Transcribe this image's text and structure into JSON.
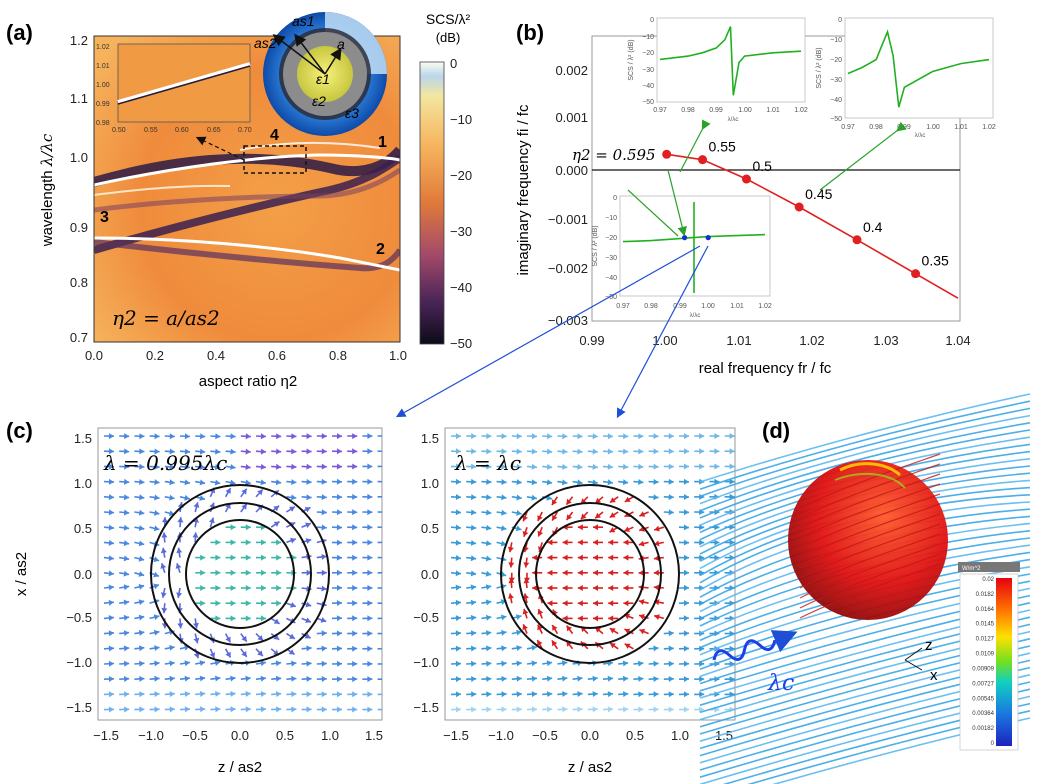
{
  "panels": {
    "a": {
      "label": "(a)",
      "ylabel_prefix": "wavelength",
      "ylabel_math": "λ/λc",
      "xlabel": "aspect ratio η2",
      "yticks": [
        "0.7",
        "0.8",
        "0.9",
        "1.0",
        "1.1",
        "1.2"
      ],
      "xticks": [
        "0.0",
        "0.2",
        "0.4",
        "0.6",
        "0.8",
        "1.0"
      ],
      "equation": "η2 = a/as2",
      "mode_labels": [
        "1",
        "2",
        "3",
        "4"
      ],
      "inset": {
        "xticks": [
          "0.50",
          "0.55",
          "0.60",
          "0.65",
          "0.70"
        ],
        "yticks": [
          "1.02",
          "1.01",
          "1.00",
          "0.99",
          "0.98"
        ]
      },
      "sphere_labels": [
        "as2",
        "as1",
        "a",
        "ε1",
        "ε2",
        "ε3"
      ],
      "colorbar": {
        "title": "SCS/λ²",
        "unit": "(dB)",
        "ticks": [
          "0",
          "−10",
          "−20",
          "−30",
          "−40",
          "−50"
        ]
      }
    },
    "b": {
      "label": "(b)",
      "ylabel": "imaginary frequency fi / fc",
      "xlabel": "real frequency fr / fc",
      "yticks": [
        "0.002",
        "0.001",
        "0.000",
        "−0.001",
        "−0.002",
        "−0.003"
      ],
      "xticks": [
        "0.99",
        "1.00",
        "1.01",
        "1.02",
        "1.03",
        "1.04"
      ],
      "eta_label": "η2 = 0.595",
      "insets": [
        {
          "ylabel": "SCS / λ² (dB)",
          "xlabel": "λ/λc",
          "yticks": [
            "0",
            "−10",
            "−20",
            "−30",
            "−40",
            "−50"
          ],
          "xticks": [
            "0.97",
            "0.98",
            "0.99",
            "1.00",
            "1.01",
            "1.02"
          ]
        },
        {
          "ylabel": "SCS / λ² (dB)",
          "xlabel": "λ/λc",
          "yticks": [
            "0",
            "−10",
            "−20",
            "−30",
            "−40",
            "−50"
          ],
          "xticks": [
            "0.97",
            "0.98",
            "0.99",
            "1.00",
            "1.01",
            "1.02"
          ]
        },
        {
          "ylabel": "SCS / λ² (dB)",
          "xlabel": "λ/λc",
          "yticks": [
            "0",
            "−10",
            "−20",
            "−30",
            "−40",
            "−50"
          ],
          "xticks": [
            "0.97",
            "0.98",
            "0.99",
            "1.00",
            "1.01",
            "1.02"
          ]
        }
      ]
    },
    "c": {
      "label": "(c)",
      "ylabel": "x / as2",
      "xlabel": "z / as2",
      "ticks": [
        "−1.5",
        "−1.0",
        "−0.5",
        "0.0",
        "0.5",
        "1.0",
        "1.5"
      ],
      "left_title": "λ = 0.995λc",
      "right_title": "λ = λc"
    },
    "d": {
      "label": "(d)",
      "colorbar_title": "W/m^2",
      "colorbar_ticks": [
        "0.02",
        "0.0182",
        "0.0164",
        "0.0145",
        "0.0127",
        "0.0109",
        "0.00909",
        "0.00727",
        "0.00545",
        "0.00364",
        "0.00182",
        "0"
      ],
      "axes": [
        "z",
        "x"
      ],
      "wave_label": "λc"
    }
  },
  "chart_data": [
    {
      "type": "scatter",
      "title": "",
      "xlabel": "real frequency fr / fc",
      "ylabel": "imaginary frequency fi / fc",
      "xlim": [
        0.99,
        1.04
      ],
      "ylim": [
        -0.0031,
        0.0022
      ],
      "points": [
        {
          "eta": "0.595",
          "x": 1.0002,
          "y": 0.0
        },
        {
          "eta": "0.55",
          "x": 1.0051,
          "y": -0.0001
        },
        {
          "eta": "0.5",
          "x": 1.0111,
          "y": -0.00046
        },
        {
          "eta": "0.45",
          "x": 1.0183,
          "y": -0.00098
        },
        {
          "eta": "0.4",
          "x": 1.0262,
          "y": -0.00159
        },
        {
          "eta": "0.35",
          "x": 1.0342,
          "y": -0.00222
        }
      ],
      "curve_color": "#e02020"
    },
    {
      "type": "line",
      "title": "",
      "xlabel": "λ/λc",
      "ylabel": "SCS / λ² (dB)",
      "xlim": [
        0.97,
        1.02
      ],
      "ylim": [
        -50,
        0
      ],
      "series": [
        {
          "x": [
            0.97,
            0.98,
            0.985,
            0.99,
            0.993,
            0.995,
            0.996,
            0.998,
            1.0,
            1.01,
            1.02
          ],
          "values": [
            -24,
            -22,
            -20,
            -17,
            -12,
            -4,
            -46,
            -26,
            -22,
            -20,
            -19
          ]
        },
        {
          "x": [
            0.97,
            0.975,
            0.98,
            0.982,
            0.984,
            0.986,
            0.988,
            0.99,
            1.0,
            1.01,
            1.02
          ],
          "values": [
            -27,
            -24,
            -20,
            -13,
            -6,
            -18,
            -44,
            -34,
            -26,
            -22,
            -20
          ]
        },
        {
          "x": [
            0.97,
            0.98,
            0.99,
            0.9945,
            0.995,
            1.0,
            1.01,
            1.02
          ],
          "values": [
            -22,
            -21.5,
            -20.5,
            -20,
            -20,
            -19.5,
            -19,
            -18.5
          ]
        }
      ]
    }
  ]
}
